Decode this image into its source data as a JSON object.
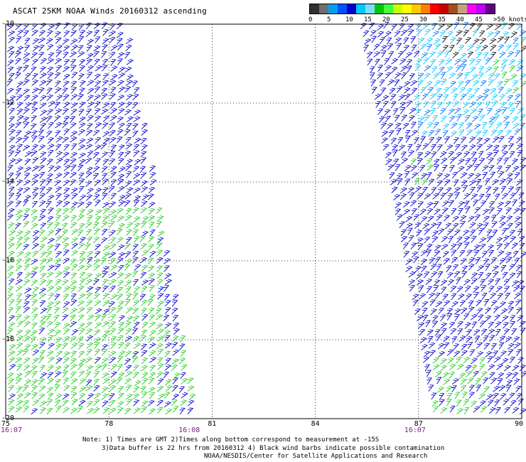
{
  "title": "ASCAT 25KM NOAA Winds 20160312 ascending",
  "legend": {
    "colors": [
      "#303030",
      "#6e6e6e",
      "#00a0f0",
      "#0050ff",
      "#0000c8",
      "#00c8ff",
      "#80dcff",
      "#00c800",
      "#40ff40",
      "#c8ff00",
      "#ffff00",
      "#ffc800",
      "#ff8000",
      "#ff0000",
      "#c80000",
      "#a05020",
      "#c8a080",
      "#ff00ff",
      "#c000ff",
      "#600080"
    ],
    "labels": [
      "0",
      "5",
      "10",
      "15",
      "20",
      "25",
      "30",
      "35",
      "40",
      "45",
      ">50 knots"
    ]
  },
  "map": {
    "lon_ticks": [
      "75",
      "78",
      "81",
      "84",
      "87",
      "90"
    ],
    "lat_ticks": [
      "-10",
      "-12",
      "-14",
      "-16",
      "-18",
      "-20"
    ],
    "lon_range": [
      75,
      90
    ],
    "lat_range": [
      -20,
      -10
    ],
    "grid": "dotted",
    "pass_times": [
      "16:07",
      "16:08",
      "16:07"
    ]
  },
  "notes": {
    "line1": "Note: 1) Times are GMT 2)Times along bottom correspond to measurement at -15S",
    "line2": "3)Data buffer is 22 hrs from 20160312 4) Black wind barbs indicate possible contamination",
    "line3": "NOAA/NESDIS/Center for Satellite Applications and Research"
  }
}
